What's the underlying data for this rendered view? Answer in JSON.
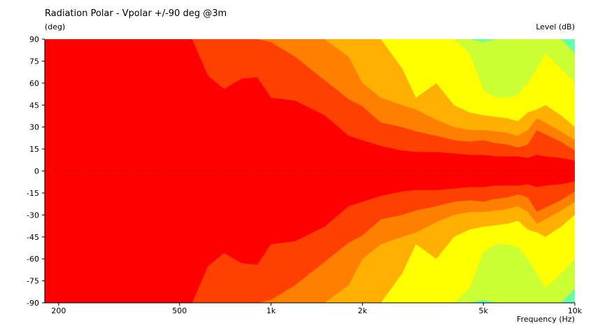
{
  "chart_data": {
    "type": "heatmap",
    "title": "Radiation Polar - Vpolar +/-90 deg @3m",
    "ylabel": "(deg)",
    "xlabel": "Frequency  (Hz)",
    "colorbar_label": "Level  (dB)",
    "x_scale": "log",
    "xlim": [
      180,
      10000
    ],
    "ylim": [
      -90,
      90
    ],
    "x_ticks": [
      {
        "value": 200,
        "label": "200"
      },
      {
        "value": 500,
        "label": "500"
      },
      {
        "value": 1000,
        "label": "1k"
      },
      {
        "value": 2000,
        "label": "2k"
      },
      {
        "value": 5000,
        "label": "5k"
      },
      {
        "value": 10000,
        "label": "10k"
      }
    ],
    "y_ticks": [
      90,
      75,
      60,
      45,
      30,
      15,
      0,
      -15,
      -30,
      -45,
      -60,
      -75,
      -90
    ],
    "contour_boundaries_deg": {
      "frequencies_hz": [
        180,
        400,
        550,
        620,
        700,
        800,
        900,
        1000,
        1200,
        1500,
        1800,
        2000,
        2300,
        2700,
        3000,
        3500,
        4000,
        4500,
        5000,
        5500,
        6000,
        6500,
        7000,
        7500,
        8000,
        9000,
        10000
      ],
      "levels": [
        {
          "color": "#ff0000",
          "angles": [
            90,
            90,
            90,
            65,
            56,
            63,
            64,
            50,
            48,
            38,
            24,
            21,
            17,
            14,
            13,
            13,
            12,
            11,
            11,
            10,
            10,
            10,
            9,
            11,
            10,
            9,
            7
          ]
        },
        {
          "color": "#ff4000",
          "angles": [
            90,
            90,
            90,
            90,
            90,
            90,
            90,
            88,
            78,
            62,
            49,
            44,
            33,
            30,
            27,
            24,
            21,
            20,
            21,
            19,
            18,
            16,
            18,
            28,
            25,
            20,
            14
          ]
        },
        {
          "color": "#ff8000",
          "angles": [
            90,
            90,
            90,
            90,
            90,
            90,
            90,
            90,
            90,
            90,
            78,
            60,
            50,
            45,
            42,
            35,
            30,
            28,
            28,
            27,
            26,
            24,
            28,
            36,
            33,
            27,
            21
          ]
        },
        {
          "color": "#ffb000",
          "angles": [
            90,
            90,
            90,
            90,
            90,
            90,
            90,
            90,
            90,
            90,
            90,
            90,
            90,
            70,
            50,
            60,
            45,
            40,
            38,
            37,
            36,
            34,
            40,
            42,
            45,
            38,
            30
          ]
        },
        {
          "color": "#ffff00",
          "angles": [
            90,
            90,
            90,
            90,
            90,
            90,
            90,
            90,
            90,
            90,
            90,
            90,
            90,
            90,
            90,
            90,
            90,
            80,
            55,
            50,
            50,
            52,
            60,
            70,
            80,
            70,
            60
          ]
        },
        {
          "color": "#ccff33",
          "angles": [
            90,
            90,
            90,
            90,
            90,
            90,
            90,
            90,
            90,
            90,
            90,
            90,
            90,
            90,
            90,
            90,
            90,
            90,
            88,
            90,
            90,
            90,
            90,
            90,
            90,
            90,
            80
          ]
        }
      ],
      "base_color": "#66ffaa"
    }
  }
}
